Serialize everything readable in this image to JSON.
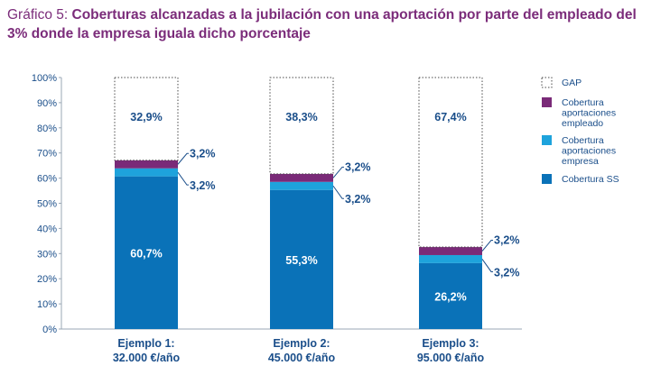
{
  "title": {
    "lead": "Gráfico 5: ",
    "main": "Coberturas alcanzadas a la jubilación con una aportación por parte del empleado del 3% donde la empresa iguala dicho porcentaje"
  },
  "chart_data": {
    "type": "bar",
    "stacked": true,
    "categories": [
      [
        "Ejemplo 1:",
        "32.000 €/año"
      ],
      [
        "Ejemplo 2:",
        "45.000 €/año"
      ],
      [
        "Ejemplo 3:",
        "95.000 €/año"
      ]
    ],
    "series": [
      {
        "name": "Cobertura SS",
        "values": [
          60.7,
          55.3,
          26.2
        ],
        "labels": [
          "60,7%",
          "55,3%",
          "26,2%"
        ],
        "color": "#0a72b8"
      },
      {
        "name": "Cobertura aportaciones empresa",
        "values": [
          3.2,
          3.2,
          3.2
        ],
        "labels": [
          "3,2%",
          "3,2%",
          "3,2%"
        ],
        "color": "#1ea3dc"
      },
      {
        "name": "Cobertura aportaciones empleado",
        "values": [
          3.2,
          3.2,
          3.2
        ],
        "labels": [
          "3,2%",
          "3,2%",
          "3,2%"
        ],
        "color": "#7a2a78"
      },
      {
        "name": "GAP",
        "values": [
          32.9,
          38.3,
          67.4
        ],
        "labels": [
          "32,9%",
          "38,3%",
          "67,4%"
        ],
        "color": "#ffffff"
      }
    ],
    "legend": {
      "position": "right",
      "entries": [
        {
          "lines": [
            "GAP"
          ],
          "color": "#ffffff",
          "dotted": true
        },
        {
          "lines": [
            "Cobertura",
            "aportaciones",
            "empleado"
          ],
          "color": "#7a2a78"
        },
        {
          "lines": [
            "Cobertura",
            "aportaciones",
            "empresa"
          ],
          "color": "#1ea3dc"
        },
        {
          "lines": [
            "Cobertura SS"
          ],
          "color": "#0a72b8"
        }
      ]
    },
    "y_ticks": [
      "0%",
      "10%",
      "20%",
      "30%",
      "40%",
      "50%",
      "60%",
      "70%",
      "80%",
      "90%",
      "100%"
    ],
    "ylim": [
      0,
      100
    ],
    "grid": false
  }
}
